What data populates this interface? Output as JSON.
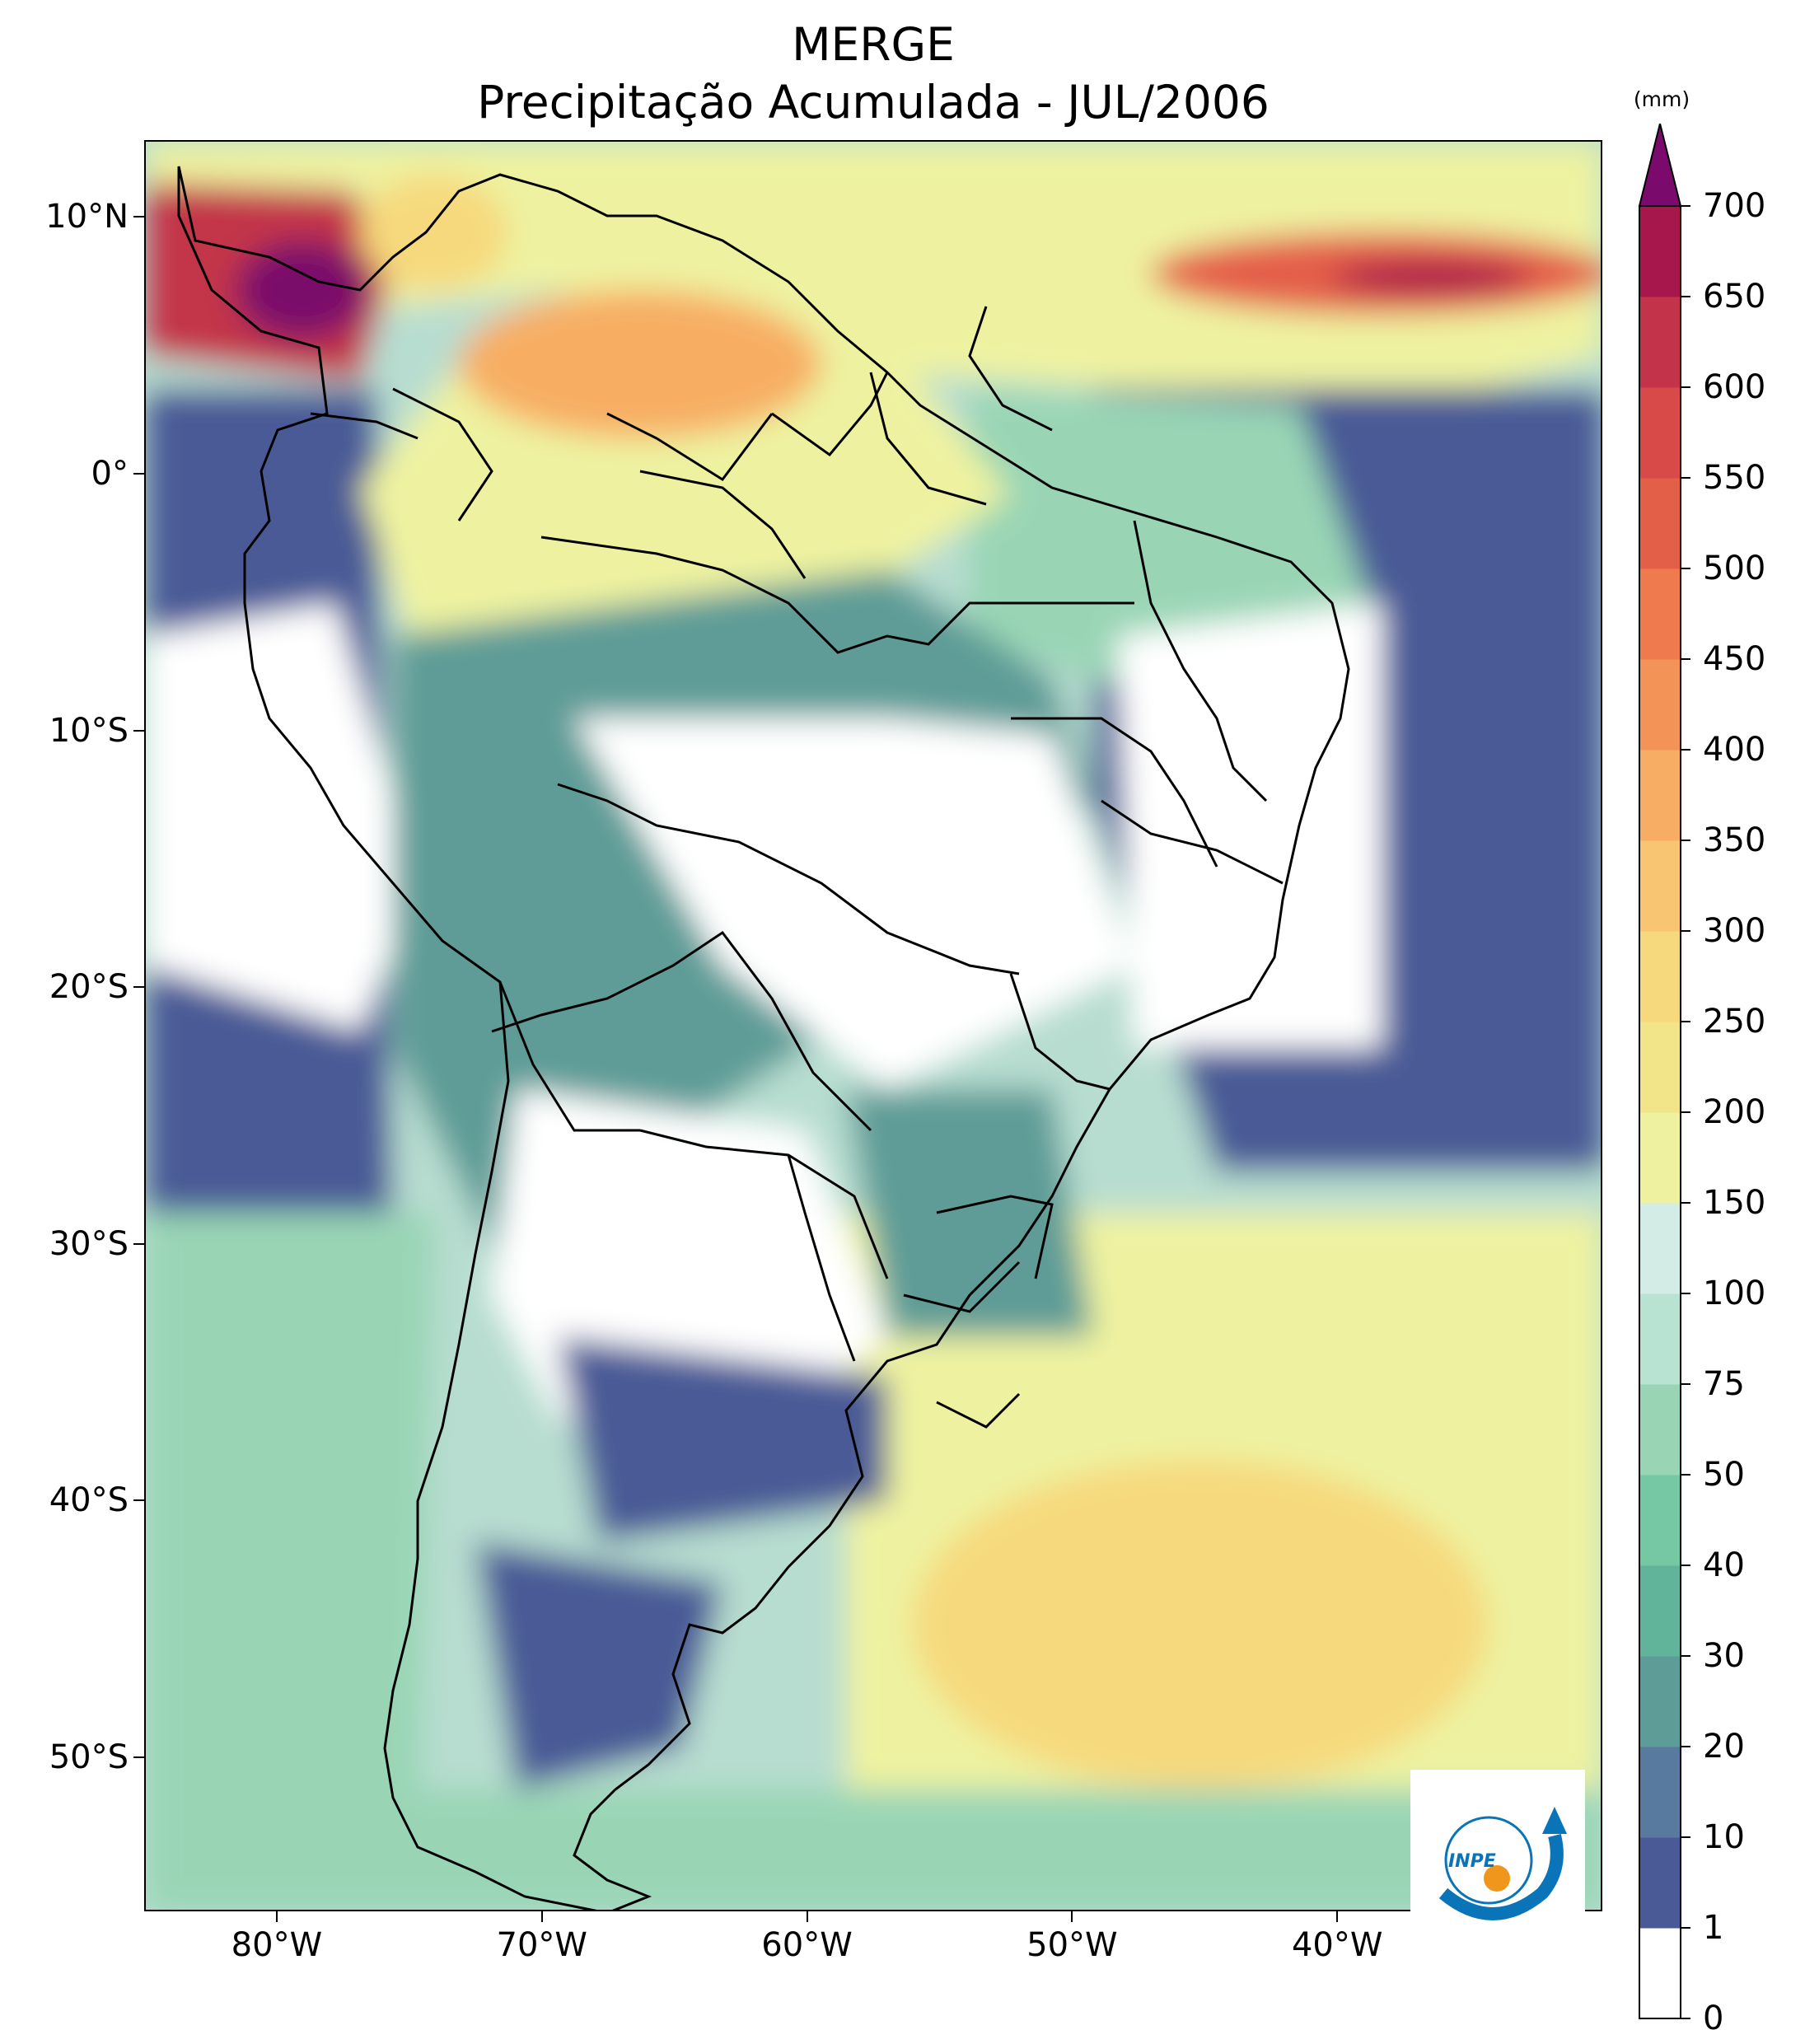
{
  "title": {
    "line1": "MERGE",
    "line2": "Precipitação Acumulada - JUL/2006"
  },
  "map": {
    "region": "South America",
    "lon_range": [
      -85,
      -30
    ],
    "lat_range": [
      -56,
      13
    ],
    "lat_ticks": [
      {
        "value": 10,
        "label": "10°N"
      },
      {
        "value": 0,
        "label": "0°"
      },
      {
        "value": -10,
        "label": "10°S"
      },
      {
        "value": -20,
        "label": "20°S"
      },
      {
        "value": -30,
        "label": "30°S"
      },
      {
        "value": -40,
        "label": "40°S"
      },
      {
        "value": -50,
        "label": "50°S"
      }
    ],
    "lon_ticks": [
      {
        "value": -80,
        "label": "80°W"
      },
      {
        "value": -70,
        "label": "70°W"
      },
      {
        "value": -60,
        "label": "60°W"
      },
      {
        "value": -50,
        "label": "50°W"
      },
      {
        "value": -40,
        "label": "40°W"
      }
    ]
  },
  "colorbar": {
    "unit": "(mm)",
    "extend": "max",
    "levels": [
      "0",
      "1",
      "10",
      "20",
      "30",
      "40",
      "50",
      "75",
      "100",
      "150",
      "200",
      "250",
      "300",
      "350",
      "400",
      "450",
      "500",
      "550",
      "600",
      "650",
      "700"
    ],
    "colors": [
      "#ffffff",
      "#4a5a96",
      "#587a9e",
      "#5e9c97",
      "#61b399",
      "#76c8a4",
      "#99d5b5",
      "#b8e2d2",
      "#d3ece6",
      "#eef2a0",
      "#f2e589",
      "#f6d97d",
      "#f8c572",
      "#f7ae64",
      "#f39358",
      "#ef7a4e",
      "#e45f48",
      "#d84a47",
      "#c3344a",
      "#a8174b",
      "#7a0a6b"
    ],
    "extend_color": "#7a0a6b"
  },
  "logo": {
    "text": "INPE",
    "arrow_color": "#0a74b8",
    "dot_color": "#f0961c"
  }
}
